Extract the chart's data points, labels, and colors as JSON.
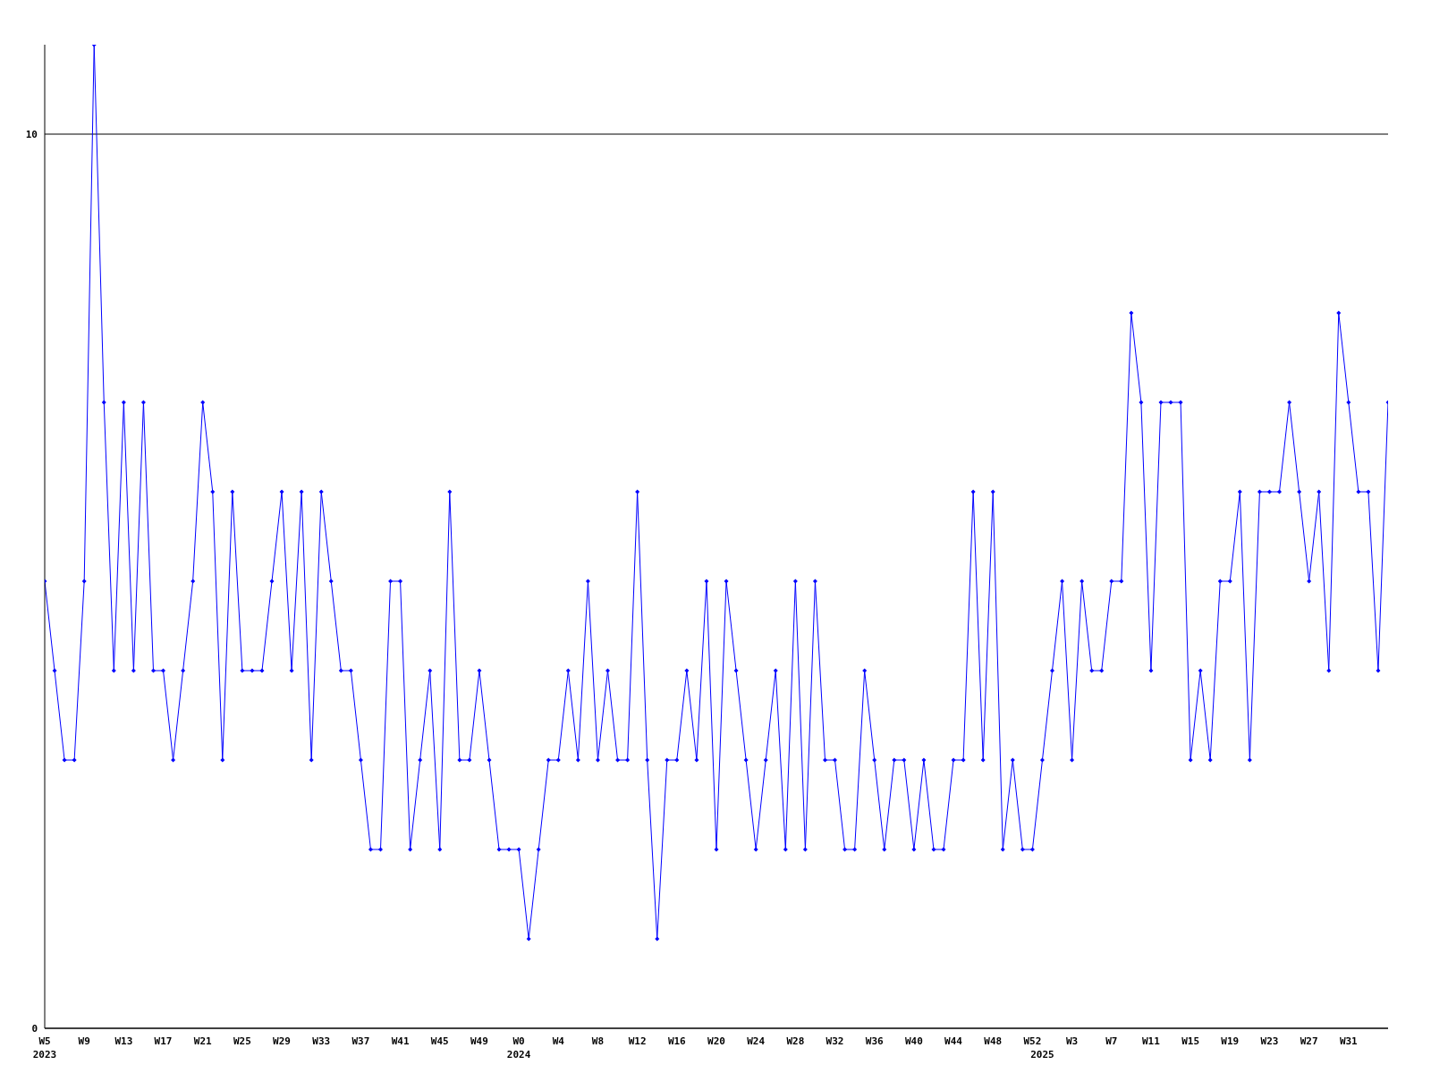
{
  "chart_data": {
    "type": "line",
    "categories": [
      "W5\n2023",
      null,
      null,
      null,
      "W9",
      null,
      null,
      null,
      "W13",
      null,
      null,
      null,
      "W17",
      null,
      null,
      null,
      "W21",
      null,
      null,
      null,
      "W25",
      null,
      null,
      null,
      "W29",
      null,
      null,
      null,
      "W33",
      null,
      null,
      null,
      "W37",
      null,
      null,
      null,
      "W41",
      null,
      null,
      null,
      "W45",
      null,
      null,
      null,
      "W49",
      null,
      null,
      null,
      "W0\n2024",
      null,
      null,
      null,
      "W4",
      null,
      null,
      null,
      "W8",
      null,
      null,
      null,
      "W12",
      null,
      null,
      null,
      "W16",
      null,
      null,
      null,
      "W20",
      null,
      null,
      null,
      "W24",
      null,
      null,
      null,
      "W28",
      null,
      null,
      null,
      "W32",
      null,
      null,
      null,
      "W36",
      null,
      null,
      null,
      "W40",
      null,
      null,
      null,
      "W44",
      null,
      null,
      null,
      "W48",
      null,
      null,
      null,
      "W52",
      "\n2025",
      null,
      null,
      "W3",
      null,
      null,
      null,
      "W7",
      null,
      null,
      null,
      "W11",
      null,
      null,
      null,
      "W15",
      null,
      null,
      null,
      "W19",
      null,
      null,
      null,
      "W23",
      null,
      null,
      null,
      "W27",
      null,
      null,
      null,
      "W31",
      null,
      null,
      null,
      null
    ],
    "series": [
      {
        "color": "#0000ff",
        "values": [
          5,
          4,
          3,
          3,
          5,
          11,
          7,
          4,
          7,
          4,
          7,
          4,
          4,
          3,
          4,
          5,
          7,
          6,
          3,
          6,
          4,
          4,
          4,
          5,
          6,
          4,
          6,
          3,
          6,
          5,
          4,
          4,
          3,
          2,
          2,
          5,
          5,
          2,
          3,
          4,
          2,
          6,
          3,
          3,
          4,
          3,
          2,
          2,
          2,
          1,
          2,
          3,
          3,
          4,
          3,
          5,
          3,
          4,
          3,
          3,
          6,
          3,
          1,
          3,
          3,
          4,
          3,
          5,
          2,
          5,
          4,
          3,
          2,
          3,
          4,
          2,
          5,
          2,
          5,
          3,
          3,
          2,
          2,
          4,
          3,
          2,
          3,
          3,
          2,
          3,
          2,
          2,
          3,
          3,
          6,
          3,
          6,
          2,
          3,
          2,
          2,
          3,
          4,
          5,
          3,
          5,
          4,
          4,
          5,
          5,
          8,
          7,
          4,
          7,
          7,
          7,
          3,
          4,
          3,
          5,
          5,
          6,
          3,
          6,
          6,
          6,
          7,
          6,
          5,
          6,
          4,
          8,
          7,
          6,
          6,
          4,
          7
        ]
      }
    ],
    "ylim": [
      0,
      11
    ],
    "yticks": [
      0,
      10
    ],
    "grid": "y",
    "marker": "diamond",
    "line_style": "solid"
  }
}
